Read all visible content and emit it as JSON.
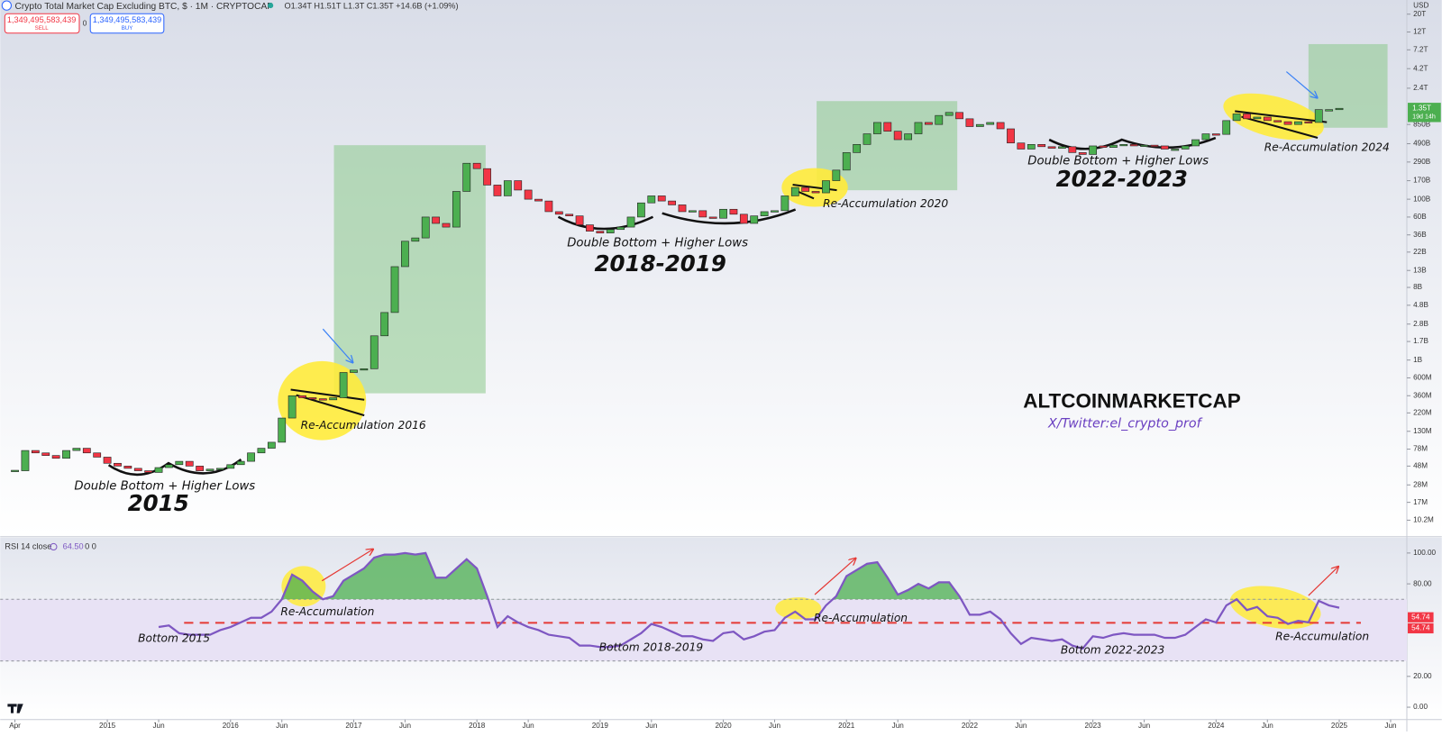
{
  "chart_data": [
    {
      "type": "candlestick",
      "title": "Crypto Total Market Cap Excluding BTC, $ · 1M · CRYPTOCAP",
      "ohlc": "O1.34T H1.51T L1.3T C1.35T +14.6B (+1.09%)",
      "sell_price": "1,349,495,583,439",
      "sell_label": "SELL",
      "spread": "0",
      "buy_price": "1,349,495,583,439",
      "buy_label": "BUY",
      "currency": "USD",
      "x": [
        "2014-04",
        "2014-05",
        "2014-06",
        "2014-07",
        "2014-08",
        "2014-09",
        "2014-10",
        "2014-11",
        "2014-12",
        "2015-01",
        "2015-02",
        "2015-03",
        "2015-04",
        "2015-05",
        "2015-06",
        "2015-07",
        "2015-08",
        "2015-09",
        "2015-10",
        "2015-11",
        "2015-12",
        "2016-01",
        "2016-02",
        "2016-03",
        "2016-04",
        "2016-05",
        "2016-06",
        "2016-07",
        "2016-08",
        "2016-09",
        "2016-10",
        "2016-11",
        "2016-12",
        "2017-01",
        "2017-02",
        "2017-03",
        "2017-04",
        "2017-05",
        "2017-06",
        "2017-07",
        "2017-08",
        "2017-09",
        "2017-10",
        "2017-11",
        "2017-12",
        "2018-01",
        "2018-02",
        "2018-03",
        "2018-04",
        "2018-05",
        "2018-06",
        "2018-07",
        "2018-08",
        "2018-09",
        "2018-10",
        "2018-11",
        "2018-12",
        "2019-01",
        "2019-02",
        "2019-03",
        "2019-04",
        "2019-05",
        "2019-06",
        "2019-07",
        "2019-08",
        "2019-09",
        "2019-10",
        "2019-11",
        "2019-12",
        "2020-01",
        "2020-02",
        "2020-03",
        "2020-04",
        "2020-05",
        "2020-06",
        "2020-07",
        "2020-08",
        "2020-09",
        "2020-10",
        "2020-11",
        "2020-12",
        "2021-01",
        "2021-02",
        "2021-03",
        "2021-04",
        "2021-05",
        "2021-06",
        "2021-07",
        "2021-08",
        "2021-09",
        "2021-10",
        "2021-11",
        "2021-12",
        "2022-01",
        "2022-02",
        "2022-03",
        "2022-04",
        "2022-05",
        "2022-06",
        "2022-07",
        "2022-08",
        "2022-09",
        "2022-10",
        "2022-11",
        "2022-12",
        "2023-01",
        "2023-02",
        "2023-03",
        "2023-04",
        "2023-05",
        "2023-06",
        "2023-07",
        "2023-08",
        "2023-09",
        "2023-10",
        "2023-11",
        "2023-12",
        "2024-01",
        "2024-02",
        "2024-03",
        "2024-04",
        "2024-05",
        "2024-06",
        "2024-07",
        "2024-08",
        "2024-09",
        "2024-10",
        "2024-11",
        "2024-12",
        "2025-01"
      ],
      "values": [
        42000000.0,
        75000000.0,
        70000000.0,
        65000000.0,
        60000000.0,
        75000000.0,
        80000000.0,
        70000000.0,
        62000000.0,
        52000000.0,
        48000000.0,
        45000000.0,
        42000000.0,
        40000000.0,
        46000000.0,
        50000000.0,
        55000000.0,
        48000000.0,
        42000000.0,
        44000000.0,
        45000000.0,
        50000000.0,
        55000000.0,
        70000000.0,
        80000000.0,
        95000000.0,
        190000000.0,
        360000000.0,
        340000000.0,
        330000000.0,
        320000000.0,
        340000000.0,
        700000000.0,
        750000000.0,
        780000000.0,
        2000000000.0,
        3900000000.0,
        14500000000.0,
        30000000000.0,
        33000000000.0,
        60000000000.0,
        50000000000.0,
        45000000000.0,
        125000000000.0,
        280000000000.0,
        240000000000.0,
        150000000000.0,
        110000000000.0,
        170000000000.0,
        130000000000.0,
        100000000000.0,
        95000000000.0,
        70000000000.0,
        65000000000.0,
        62000000000.0,
        48000000000.0,
        40000000000.0,
        38000000000.0,
        42000000000.0,
        45000000000.0,
        60000000000.0,
        90000000000.0,
        110000000000.0,
        95000000000.0,
        85000000000.0,
        70000000000.0,
        72000000000.0,
        60000000000.0,
        58000000000.0,
        75000000000.0,
        65000000000.0,
        50000000000.0,
        62000000000.0,
        70000000000.0,
        72000000000.0,
        110000000000.0,
        140000000000.0,
        125000000000.0,
        120000000000.0,
        170000000000.0,
        230000000000.0,
        380000000000.0,
        480000000000.0,
        650000000000.0,
        900000000000.0,
        700000000000.0,
        550000000000.0,
        650000000000.0,
        900000000000.0,
        850000000000.0,
        1100000000000.0,
        1200000000000.0,
        1000000000000.0,
        800000000000.0,
        850000000000.0,
        900000000000.0,
        750000000000.0,
        500000000000.0,
        420000000000.0,
        480000000000.0,
        450000000000.0,
        430000000000.0,
        450000000000.0,
        380000000000.0,
        360000000000.0,
        460000000000.0,
        440000000000.0,
        470000000000.0,
        480000000000.0,
        460000000000.0,
        470000000000.0,
        460000000000.0,
        420000000000.0,
        420000000000.0,
        460000000000.0,
        550000000000.0,
        650000000000.0,
        640000000000.0,
        950000000000.0,
        1150000000000.0,
        1000000000000.0,
        1050000000000.0,
        950000000000.0,
        920000000000.0,
        850000000000.0,
        920000000000.0,
        900000000000.0,
        1300000000000.0,
        1300000000000.0,
        1350000000000.0
      ],
      "up_color": "#4caf50",
      "down_color": "#f23645",
      "log_scale": true,
      "ylim": [
        6530000.0,
        30000000000000.0
      ],
      "yticks": [
        {
          "value": 10200000.0,
          "label": "10.2M"
        },
        {
          "value": 17000000.0,
          "label": "17M"
        },
        {
          "value": 28000000.0,
          "label": "28M"
        },
        {
          "value": 48000000.0,
          "label": "48M"
        },
        {
          "value": 78000000.0,
          "label": "78M"
        },
        {
          "value": 130000000.0,
          "label": "130M"
        },
        {
          "value": 220000000.0,
          "label": "220M"
        },
        {
          "value": 360000000.0,
          "label": "360M"
        },
        {
          "value": 600000000.0,
          "label": "600M"
        },
        {
          "value": 1000000000.0,
          "label": "1B"
        },
        {
          "value": 1700000000.0,
          "label": "1.7B"
        },
        {
          "value": 2800000000.0,
          "label": "2.8B"
        },
        {
          "value": 4800000000.0,
          "label": "4.8B"
        },
        {
          "value": 8000000000.0,
          "label": "8B"
        },
        {
          "value": 13000000000.0,
          "label": "13B"
        },
        {
          "value": 22000000000.0,
          "label": "22B"
        },
        {
          "value": 36000000000.0,
          "label": "36B"
        },
        {
          "value": 60000000000.0,
          "label": "60B"
        },
        {
          "value": 100000000000.0,
          "label": "100B"
        },
        {
          "value": 170000000000.0,
          "label": "170B"
        },
        {
          "value": 290000000000.0,
          "label": "290B"
        },
        {
          "value": 490000000000.0,
          "label": "490B"
        },
        {
          "value": 850000000000.0,
          "label": "850B"
        },
        {
          "value": 2400000000000.0,
          "label": "2.4T"
        },
        {
          "value": 4200000000000.0,
          "label": "4.2T"
        },
        {
          "value": 7200000000000.0,
          "label": "7.2T"
        },
        {
          "value": 12000000000000.0,
          "label": "12T"
        },
        {
          "value": 20000000000000.0,
          "label": "20T"
        }
      ],
      "xticks": [
        {
          "value": "2014-04",
          "label": "Apr"
        },
        {
          "value": "2015-01",
          "label": "2015"
        },
        {
          "value": "2015-06",
          "label": "Jun"
        },
        {
          "value": "2016-01",
          "label": "2016"
        },
        {
          "value": "2016-06",
          "label": "Jun"
        },
        {
          "value": "2017-01",
          "label": "2017"
        },
        {
          "value": "2017-06",
          "label": "Jun"
        },
        {
          "value": "2018-01",
          "label": "2018"
        },
        {
          "value": "2018-06",
          "label": "Jun"
        },
        {
          "value": "2019-01",
          "label": "2019"
        },
        {
          "value": "2019-06",
          "label": "Jun"
        },
        {
          "value": "2020-01",
          "label": "2020"
        },
        {
          "value": "2020-06",
          "label": "Jun"
        },
        {
          "value": "2021-01",
          "label": "2021"
        },
        {
          "value": "2021-06",
          "label": "Jun"
        },
        {
          "value": "2022-01",
          "label": "2022"
        },
        {
          "value": "2022-06",
          "label": "Jun"
        },
        {
          "value": "2023-01",
          "label": "2023"
        },
        {
          "value": "2023-06",
          "label": "Jun"
        },
        {
          "value": "2024-01",
          "label": "2024"
        },
        {
          "value": "2024-06",
          "label": "Jun"
        },
        {
          "value": "2025-01",
          "label": "2025"
        },
        {
          "value": "2025-06",
          "label": "Jun"
        }
      ],
      "price_marker": {
        "value": 1350000000000.0,
        "label": "1.35T"
      },
      "countdown": "19d 14h",
      "annotations": [
        "Double Bottom + Higher Lows",
        "2015",
        "Re-Accumulation 2016",
        "Double Bottom + Higher Lows",
        "2018-2019",
        "Re-Accumulation 2020",
        "Double Bottom + Higher Lows",
        "2022-2023",
        "Re-Accumulation 2024",
        "ALTCOINMARKETCAP",
        "X/Twitter:el_crypto_prof"
      ]
    },
    {
      "type": "line",
      "title": "RSI 14 close",
      "current": {
        "value": 64.5,
        "label": "64.50"
      },
      "extra": "0 0",
      "color": "#7e57c2",
      "x": [
        "2015-06",
        "2015-07",
        "2015-08",
        "2015-09",
        "2015-10",
        "2015-11",
        "2015-12",
        "2016-01",
        "2016-02",
        "2016-03",
        "2016-04",
        "2016-05",
        "2016-06",
        "2016-07",
        "2016-08",
        "2016-09",
        "2016-10",
        "2016-11",
        "2016-12",
        "2017-01",
        "2017-02",
        "2017-03",
        "2017-04",
        "2017-05",
        "2017-06",
        "2017-07",
        "2017-08",
        "2017-09",
        "2017-10",
        "2017-11",
        "2017-12",
        "2018-01",
        "2018-02",
        "2018-03",
        "2018-04",
        "2018-05",
        "2018-06",
        "2018-07",
        "2018-08",
        "2018-09",
        "2018-10",
        "2018-11",
        "2018-12",
        "2019-01",
        "2019-02",
        "2019-03",
        "2019-04",
        "2019-05",
        "2019-06",
        "2019-07",
        "2019-08",
        "2019-09",
        "2019-10",
        "2019-11",
        "2019-12",
        "2020-01",
        "2020-02",
        "2020-03",
        "2020-04",
        "2020-05",
        "2020-06",
        "2020-07",
        "2020-08",
        "2020-09",
        "2020-10",
        "2020-11",
        "2020-12",
        "2021-01",
        "2021-02",
        "2021-03",
        "2021-04",
        "2021-05",
        "2021-06",
        "2021-07",
        "2021-08",
        "2021-09",
        "2021-10",
        "2021-11",
        "2021-12",
        "2022-01",
        "2022-02",
        "2022-03",
        "2022-04",
        "2022-05",
        "2022-06",
        "2022-07",
        "2022-08",
        "2022-09",
        "2022-10",
        "2022-11",
        "2022-12",
        "2023-01",
        "2023-02",
        "2023-03",
        "2023-04",
        "2023-05",
        "2023-06",
        "2023-07",
        "2023-08",
        "2023-09",
        "2023-10",
        "2023-11",
        "2023-12",
        "2024-01",
        "2024-02",
        "2024-03",
        "2024-04",
        "2024-05",
        "2024-06",
        "2024-07",
        "2024-08",
        "2024-09",
        "2024-10",
        "2024-11",
        "2024-12",
        "2025-01"
      ],
      "values": [
        52,
        53,
        48,
        47,
        47,
        47,
        50,
        52,
        55,
        58,
        58,
        62,
        70,
        86,
        82,
        75,
        70,
        72,
        82,
        86,
        90,
        97,
        99,
        99,
        100,
        99,
        100,
        84,
        84,
        90,
        96,
        90,
        72,
        52,
        59,
        55,
        52,
        50,
        47,
        46,
        45,
        40,
        40,
        39,
        39,
        40,
        44,
        48,
        54,
        52,
        49,
        46,
        46,
        44,
        43,
        48,
        49,
        44,
        46,
        49,
        50,
        58,
        62,
        57,
        57,
        66,
        72,
        85,
        89,
        93,
        94,
        84,
        73,
        76,
        80,
        77,
        81,
        81,
        72,
        60,
        60,
        62,
        57,
        48,
        41,
        45,
        44,
        43,
        44,
        40,
        38,
        46,
        45,
        47,
        48,
        47,
        47,
        47,
        45,
        45,
        47,
        52,
        57,
        55,
        66,
        70,
        63,
        65,
        59,
        58,
        54,
        56,
        55,
        69,
        66,
        64.5
      ],
      "ylim": [
        -8,
        110
      ],
      "yticks": [
        {
          "value": 0,
          "label": "0.00"
        },
        {
          "value": 20,
          "label": "20.00"
        },
        {
          "value": 80,
          "label": "80.00"
        },
        {
          "value": 100,
          "label": "100.00"
        }
      ],
      "bands": [
        30,
        70
      ],
      "level_labels": [
        54.74,
        54.74
      ],
      "annotations": [
        "Re-Accumulation",
        "Bottom 2015",
        "Re-Accumulation",
        "Bottom 2018-2019",
        "Bottom 2022-2023",
        "Re-Accumulation"
      ]
    }
  ]
}
